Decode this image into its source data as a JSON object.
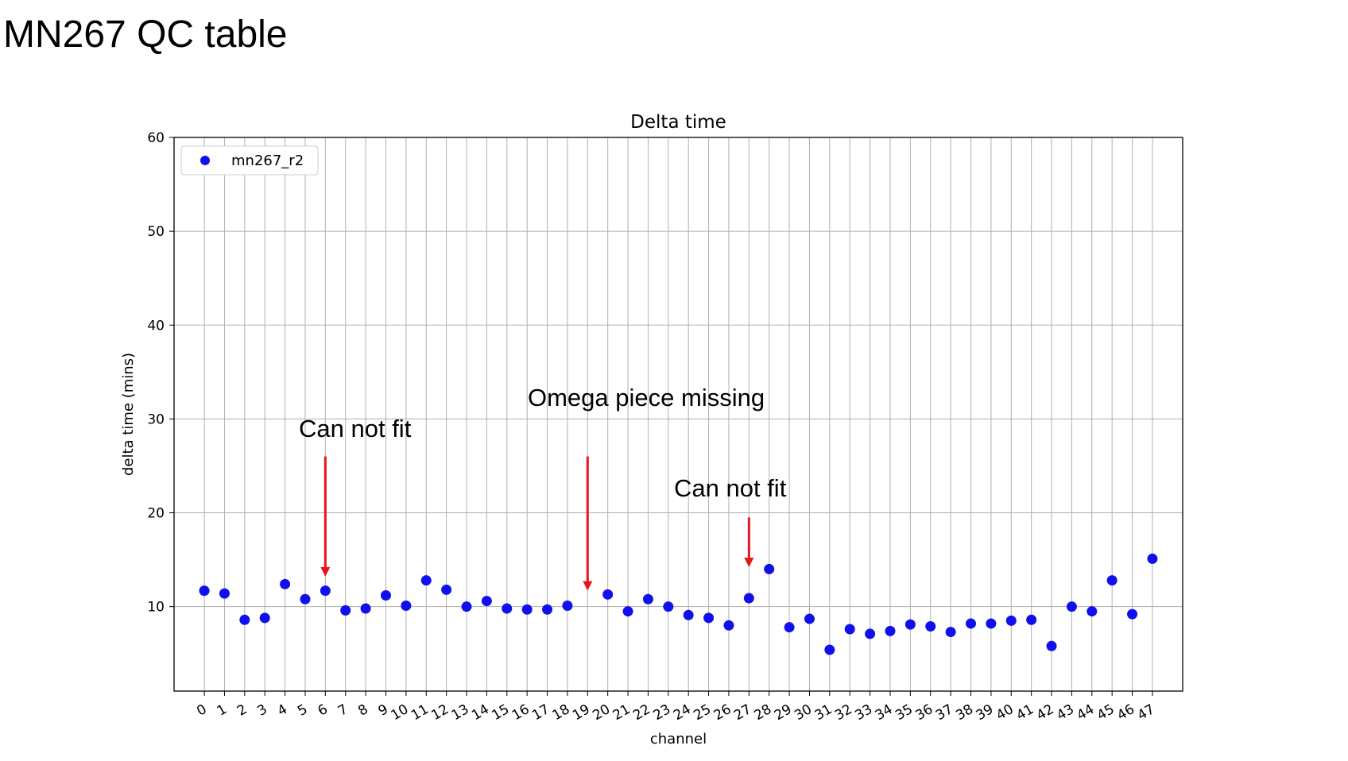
{
  "slide": {
    "title": "MN267 QC table"
  },
  "chart_data": {
    "type": "scatter",
    "title": "Delta time",
    "xlabel": "channel",
    "ylabel": "delta time (mins)",
    "xlim": [
      -1.5,
      48.5
    ],
    "ylim": [
      1,
      60
    ],
    "yticks": [
      10,
      20,
      30,
      40,
      50,
      60
    ],
    "xticks": [
      0,
      1,
      2,
      3,
      4,
      5,
      6,
      7,
      8,
      9,
      10,
      11,
      12,
      13,
      14,
      15,
      16,
      17,
      18,
      19,
      20,
      21,
      22,
      23,
      24,
      25,
      26,
      27,
      28,
      29,
      30,
      31,
      32,
      33,
      34,
      35,
      36,
      37,
      38,
      39,
      40,
      41,
      42,
      43,
      44,
      45,
      46,
      47
    ],
    "grid": true,
    "legend_position": "top-left",
    "series": [
      {
        "name": "mn267_r2",
        "color": "#1010ee",
        "points": [
          {
            "x": 0,
            "y": 11.7
          },
          {
            "x": 1,
            "y": 11.4
          },
          {
            "x": 2,
            "y": 8.6
          },
          {
            "x": 3,
            "y": 8.8
          },
          {
            "x": 4,
            "y": 12.4
          },
          {
            "x": 5,
            "y": 10.8
          },
          {
            "x": 6,
            "y": 11.7
          },
          {
            "x": 7,
            "y": 9.6
          },
          {
            "x": 8,
            "y": 9.8
          },
          {
            "x": 9,
            "y": 11.2
          },
          {
            "x": 10,
            "y": 10.1
          },
          {
            "x": 11,
            "y": 12.8
          },
          {
            "x": 12,
            "y": 11.8
          },
          {
            "x": 13,
            "y": 10.0
          },
          {
            "x": 14,
            "y": 10.6
          },
          {
            "x": 15,
            "y": 9.8
          },
          {
            "x": 16,
            "y": 9.7
          },
          {
            "x": 17,
            "y": 9.7
          },
          {
            "x": 18,
            "y": 10.1
          },
          {
            "x": 20,
            "y": 11.3
          },
          {
            "x": 21,
            "y": 9.5
          },
          {
            "x": 22,
            "y": 10.8
          },
          {
            "x": 23,
            "y": 10.0
          },
          {
            "x": 24,
            "y": 9.1
          },
          {
            "x": 25,
            "y": 8.8
          },
          {
            "x": 26,
            "y": 8.0
          },
          {
            "x": 27,
            "y": 10.9
          },
          {
            "x": 28,
            "y": 14.0
          },
          {
            "x": 29,
            "y": 7.8
          },
          {
            "x": 30,
            "y": 8.7
          },
          {
            "x": 31,
            "y": 5.4
          },
          {
            "x": 32,
            "y": 7.6
          },
          {
            "x": 33,
            "y": 7.1
          },
          {
            "x": 34,
            "y": 7.4
          },
          {
            "x": 35,
            "y": 8.1
          },
          {
            "x": 36,
            "y": 7.9
          },
          {
            "x": 37,
            "y": 7.3
          },
          {
            "x": 38,
            "y": 8.2
          },
          {
            "x": 39,
            "y": 8.2
          },
          {
            "x": 40,
            "y": 8.5
          },
          {
            "x": 41,
            "y": 8.6
          },
          {
            "x": 42,
            "y": 5.8
          },
          {
            "x": 43,
            "y": 10.0
          },
          {
            "x": 44,
            "y": 9.5
          },
          {
            "x": 45,
            "y": 12.8
          },
          {
            "x": 46,
            "y": 9.2
          },
          {
            "x": 47,
            "y": 15.1
          }
        ]
      }
    ],
    "annotations": [
      {
        "text": "Can not fit",
        "arrow_x": 6,
        "arrow_from_y": 26,
        "arrow_to_y": 13.2,
        "color": "#e8141c"
      },
      {
        "text": "Omega piece missing",
        "arrow_x": 19,
        "arrow_from_y": 26,
        "arrow_to_y": 11.7,
        "color": "#e8141c"
      },
      {
        "text": "Can not fit",
        "arrow_x": 27,
        "arrow_from_y": 19.5,
        "arrow_to_y": 14.2,
        "color": "#e8141c"
      }
    ]
  }
}
